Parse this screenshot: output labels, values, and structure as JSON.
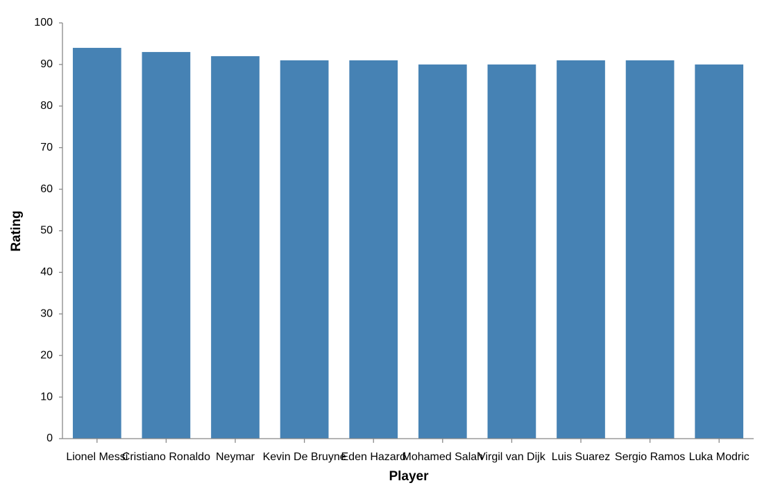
{
  "chart_data": {
    "type": "bar",
    "title": "",
    "xlabel": "Player",
    "ylabel": "Rating",
    "ylim": [
      0,
      100
    ],
    "yticks": [
      0,
      10,
      20,
      30,
      40,
      50,
      60,
      70,
      80,
      90,
      100
    ],
    "grid": false,
    "legend": "none",
    "bar_color": "#4682b4",
    "categories": [
      "Lionel Messi",
      "Cristiano Ronaldo",
      "Neymar",
      "Kevin De Bruyne",
      "Eden Hazard",
      "Mohamed Salah",
      "Virgil van Dijk",
      "Luis Suarez",
      "Sergio Ramos",
      "Luka Modric"
    ],
    "values": [
      94,
      93,
      92,
      91,
      91,
      90,
      90,
      91,
      91,
      90
    ]
  }
}
